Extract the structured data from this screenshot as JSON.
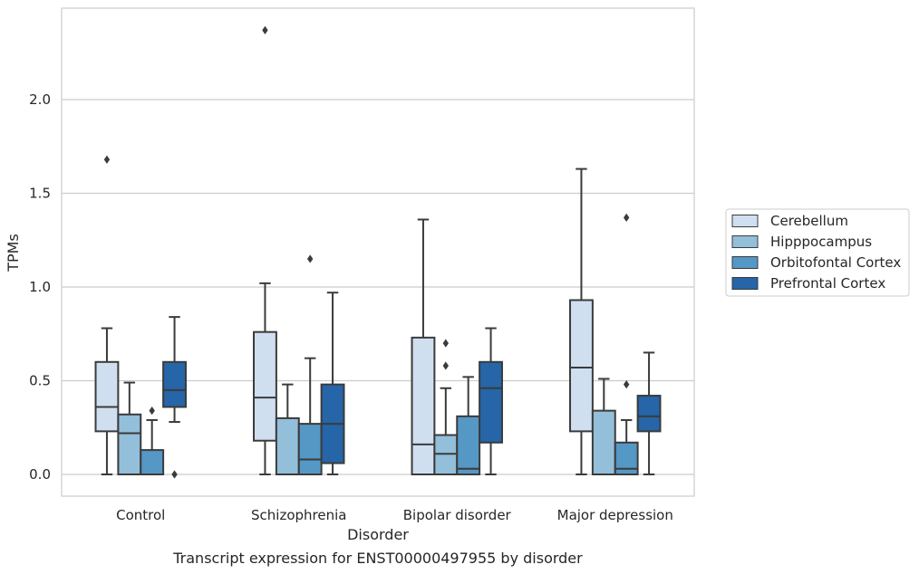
{
  "chart_data": {
    "type": "box",
    "xlabel": "Disorder",
    "ylabel": "TPMs",
    "caption": "Transcript expression for ENST00000497955 by disorder",
    "categories": [
      "Control",
      "Schizophrenia",
      "Bipolar disorder",
      "Major depression"
    ],
    "y_ticks": [
      "0.0",
      "0.5",
      "1.0",
      "1.5",
      "2.0"
    ],
    "ylim": [
      -0.11,
      2.5
    ],
    "grid": "horizontal",
    "legend_position": "right",
    "series": [
      {
        "name": "Cerebellum",
        "color": "#d0dff0",
        "boxes": [
          {
            "whisker_low": 0.0,
            "q1": 0.23,
            "median": 0.36,
            "q3": 0.6,
            "whisker_high": 0.78,
            "outliers": [
              1.68
            ]
          },
          {
            "whisker_low": 0.0,
            "q1": 0.18,
            "median": 0.41,
            "q3": 0.76,
            "whisker_high": 1.02,
            "outliers": [
              2.37
            ]
          },
          {
            "whisker_low": 0.0,
            "q1": 0.0,
            "median": 0.16,
            "q3": 0.73,
            "whisker_high": 1.36,
            "outliers": []
          },
          {
            "whisker_low": 0.0,
            "q1": 0.23,
            "median": 0.57,
            "q3": 0.93,
            "whisker_high": 1.63,
            "outliers": []
          }
        ]
      },
      {
        "name": "Hipppocampus",
        "color": "#93bfda",
        "boxes": [
          {
            "whisker_low": 0.0,
            "q1": 0.0,
            "median": 0.22,
            "q3": 0.32,
            "whisker_high": 0.49,
            "outliers": []
          },
          {
            "whisker_low": 0.0,
            "q1": 0.0,
            "median": 0.0,
            "q3": 0.3,
            "whisker_high": 0.48,
            "outliers": []
          },
          {
            "whisker_low": 0.0,
            "q1": 0.0,
            "median": 0.11,
            "q3": 0.21,
            "whisker_high": 0.46,
            "outliers": [
              0.58,
              0.7
            ]
          },
          {
            "whisker_low": 0.0,
            "q1": 0.0,
            "median": 0.0,
            "q3": 0.34,
            "whisker_high": 0.51,
            "outliers": []
          }
        ]
      },
      {
        "name": "Orbitofontal Cortex",
        "color": "#5597c5",
        "boxes": [
          {
            "whisker_low": 0.0,
            "q1": 0.0,
            "median": 0.0,
            "q3": 0.13,
            "whisker_high": 0.29,
            "outliers": [
              0.34
            ]
          },
          {
            "whisker_low": 0.0,
            "q1": 0.0,
            "median": 0.08,
            "q3": 0.27,
            "whisker_high": 0.62,
            "outliers": [
              1.15
            ]
          },
          {
            "whisker_low": 0.0,
            "q1": 0.0,
            "median": 0.03,
            "q3": 0.31,
            "whisker_high": 0.52,
            "outliers": []
          },
          {
            "whisker_low": 0.0,
            "q1": 0.0,
            "median": 0.03,
            "q3": 0.17,
            "whisker_high": 0.29,
            "outliers": [
              0.48,
              1.37
            ]
          }
        ]
      },
      {
        "name": "Prefrontal Cortex",
        "color": "#2565a8",
        "boxes": [
          {
            "whisker_low": 0.28,
            "q1": 0.36,
            "median": 0.45,
            "q3": 0.6,
            "whisker_high": 0.84,
            "outliers": [
              0.0
            ]
          },
          {
            "whisker_low": 0.0,
            "q1": 0.06,
            "median": 0.27,
            "q3": 0.48,
            "whisker_high": 0.97,
            "outliers": []
          },
          {
            "whisker_low": 0.0,
            "q1": 0.17,
            "median": 0.46,
            "q3": 0.6,
            "whisker_high": 0.78,
            "outliers": []
          },
          {
            "whisker_low": 0.0,
            "q1": 0.23,
            "median": 0.31,
            "q3": 0.42,
            "whisker_high": 0.65,
            "outliers": []
          }
        ]
      }
    ]
  }
}
